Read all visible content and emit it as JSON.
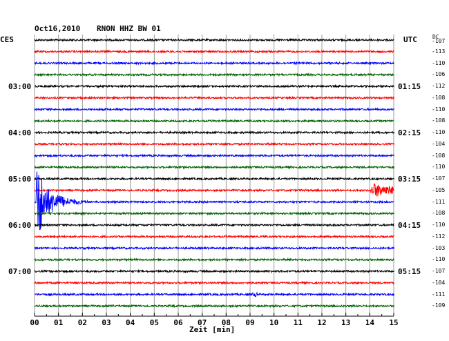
{
  "header": {
    "date": "Oct16,2010",
    "station": "RNON HHZ BW 01",
    "left_zone": "CES",
    "right_zone": "UTC",
    "dc_label": "DC"
  },
  "chart_data": {
    "type": "line",
    "xlabel": "Zeit [min]",
    "xlim": [
      0,
      15
    ],
    "x_ticks": [
      "00",
      "01",
      "02",
      "03",
      "04",
      "05",
      "06",
      "07",
      "08",
      "09",
      "10",
      "11",
      "12",
      "13",
      "14",
      "15"
    ],
    "trace_colors": [
      "#000000",
      "#ff0000",
      "#0000ff",
      "#006400"
    ],
    "rows": 24,
    "left_hour_labels": [
      {
        "row": 4,
        "label": "03:00"
      },
      {
        "row": 8,
        "label": "04:00"
      },
      {
        "row": 12,
        "label": "05:00"
      },
      {
        "row": 16,
        "label": "06:00"
      },
      {
        "row": 20,
        "label": "07:00"
      }
    ],
    "right_time_labels": [
      {
        "row": 4,
        "label": "01:15"
      },
      {
        "row": 8,
        "label": "02:15"
      },
      {
        "row": 12,
        "label": "03:15"
      },
      {
        "row": 16,
        "label": "04:15"
      },
      {
        "row": 20,
        "label": "05:15"
      }
    ],
    "dc_offsets": [
      "-107",
      "-113",
      "-110",
      "-106",
      "-112",
      "-108",
      "-110",
      "-108",
      "-110",
      "-104",
      "-108",
      "-110",
      "-107",
      "-105",
      "-111",
      "-108",
      "-110",
      "-112",
      "-103",
      "-110",
      "-107",
      "-104",
      "-111",
      "-109"
    ],
    "events": [
      {
        "row": 14,
        "start_min": 0.05,
        "end_min": 2.3,
        "peak_amplitude": "large",
        "note": "earthquake"
      },
      {
        "row": 13,
        "start_min": 14.0,
        "end_min": 15.0,
        "peak_amplitude": "medium"
      },
      {
        "row": 22,
        "start_min": 9.1,
        "end_min": 9.3,
        "peak_amplitude": "small"
      }
    ]
  }
}
